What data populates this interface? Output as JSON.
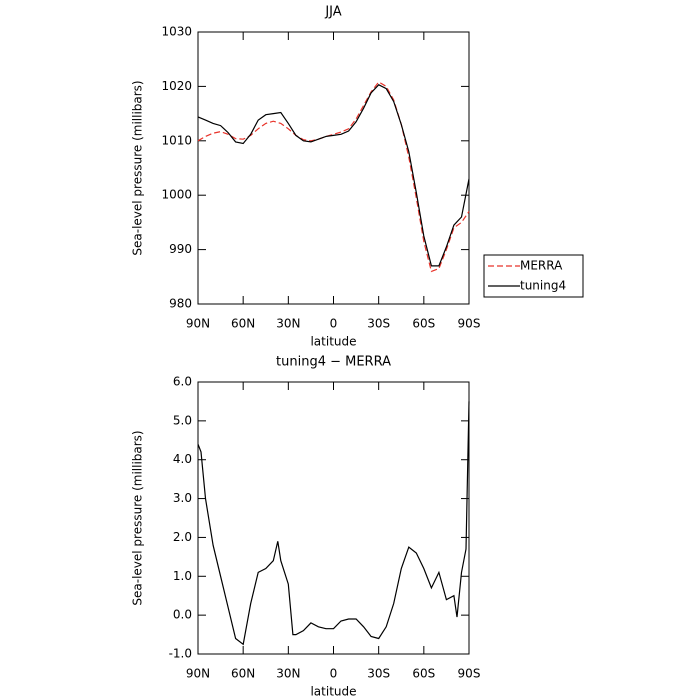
{
  "chart_data": [
    {
      "type": "line",
      "title": "JJA",
      "xlabel": "latitude",
      "ylabel": "Sea-level pressure (millibars)",
      "xlim": [
        90,
        -90
      ],
      "ylim": [
        980,
        1030
      ],
      "xticks": [
        {
          "value": 90,
          "label": "90N"
        },
        {
          "value": 60,
          "label": "60N"
        },
        {
          "value": 30,
          "label": "30N"
        },
        0,
        {
          "value": -30,
          "label": "30S"
        },
        {
          "value": -60,
          "label": "60S"
        },
        {
          "value": -90,
          "label": "90S"
        }
      ],
      "yticks": [
        980,
        990,
        1000,
        1010,
        1020,
        1030
      ],
      "legend": "outside-right",
      "x": [
        90,
        85,
        80,
        75,
        70,
        65,
        60,
        55,
        50,
        45,
        40,
        35,
        30,
        25,
        20,
        15,
        10,
        5,
        0,
        -5,
        -10,
        -15,
        -20,
        -25,
        -30,
        -35,
        -40,
        -45,
        -50,
        -55,
        -60,
        -65,
        -70,
        -75,
        -80,
        -85,
        -90
      ],
      "series": [
        {
          "name": "MERRA",
          "color": "#e8332a",
          "linestyle": "dashed",
          "values": [
            1010,
            1010.8,
            1011.4,
            1011.7,
            1011.2,
            1010.4,
            1010.3,
            1011,
            1012.2,
            1013.2,
            1013.6,
            1013.2,
            1012.2,
            1011,
            1010.2,
            1010,
            1010.3,
            1010.8,
            1011.2,
            1011.6,
            1012.2,
            1014,
            1016.5,
            1019,
            1020.8,
            1020,
            1017.5,
            1013,
            1007,
            999.5,
            991.5,
            986,
            986.5,
            990,
            994,
            995,
            997
          ]
        },
        {
          "name": "tuning4",
          "color": "#000000",
          "linestyle": "solid",
          "values": [
            1014.4,
            1013.8,
            1013.2,
            1012.8,
            1011.5,
            1009.8,
            1009.5,
            1011.2,
            1013.8,
            1014.8,
            1015,
            1015.2,
            1013.2,
            1011,
            1010,
            1009.8,
            1010.3,
            1010.8,
            1011,
            1011.2,
            1011.8,
            1013.5,
            1016,
            1018.8,
            1020.3,
            1019.6,
            1017.2,
            1013,
            1008,
            1000.5,
            992.5,
            987,
            987,
            990.5,
            994.5,
            996,
            1003
          ]
        }
      ]
    },
    {
      "type": "line",
      "title": "tuning4 − MERRA",
      "xlabel": "latitude",
      "ylabel": "Sea-level pressure (millibars)",
      "xlim": [
        90,
        -90
      ],
      "ylim": [
        -1,
        6
      ],
      "xticks": [
        {
          "value": 90,
          "label": "90N"
        },
        {
          "value": 60,
          "label": "60N"
        },
        {
          "value": 30,
          "label": "30N"
        },
        0,
        {
          "value": -30,
          "label": "30S"
        },
        {
          "value": -60,
          "label": "60S"
        },
        {
          "value": -90,
          "label": "90S"
        }
      ],
      "yticks": [
        {
          "value": -1,
          "label": "-1.0"
        },
        {
          "value": 0,
          "label": "0.0"
        },
        {
          "value": 1,
          "label": "1.0"
        },
        {
          "value": 2,
          "label": "2.0"
        },
        {
          "value": 3,
          "label": "3.0"
        },
        {
          "value": 4,
          "label": "4.0"
        },
        {
          "value": 5,
          "label": "5.0"
        },
        {
          "value": 6,
          "label": "6.0"
        }
      ],
      "x": [
        90,
        88,
        85,
        80,
        75,
        70,
        65,
        60,
        55,
        50,
        45,
        40,
        37,
        35,
        30,
        27,
        25,
        20,
        15,
        10,
        5,
        0,
        -5,
        -10,
        -15,
        -20,
        -25,
        -30,
        -35,
        -40,
        -45,
        -50,
        -55,
        -60,
        -65,
        -70,
        -75,
        -80,
        -82,
        -85,
        -88,
        -90
      ],
      "series": [
        {
          "color": "#000000",
          "linestyle": "solid",
          "values": [
            4.4,
            4.2,
            3.0,
            1.8,
            1.0,
            0.2,
            -0.6,
            -0.75,
            0.3,
            1.1,
            1.2,
            1.4,
            1.9,
            1.4,
            0.8,
            -0.5,
            -0.5,
            -0.4,
            -0.2,
            -0.3,
            -0.35,
            -0.35,
            -0.15,
            -0.1,
            -0.1,
            -0.3,
            -0.55,
            -0.6,
            -0.3,
            0.3,
            1.2,
            1.75,
            1.6,
            1.2,
            0.7,
            1.1,
            0.4,
            0.5,
            -0.05,
            1.1,
            1.7,
            5.5
          ]
        }
      ]
    }
  ]
}
